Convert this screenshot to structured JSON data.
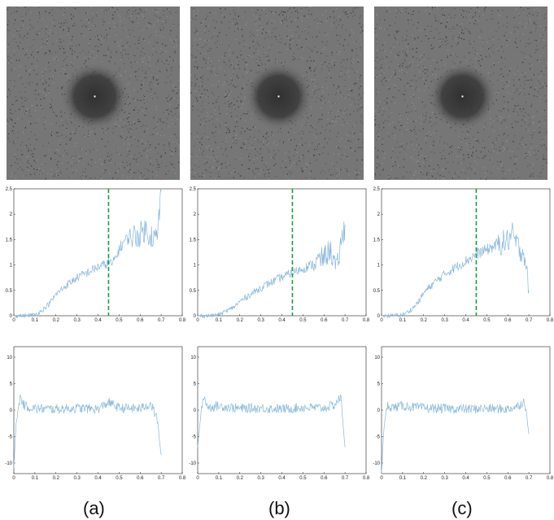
{
  "captions": [
    "(a)",
    "(b)",
    "(c)"
  ],
  "colors": {
    "signal": "#8ab8db",
    "cutoff": "#1a9e3a",
    "axis": "#222222"
  },
  "chart_data": [
    {
      "panel": "a",
      "type": "image",
      "content": "fourier-power-spectrum",
      "colormap": "gray"
    },
    {
      "panel": "b",
      "type": "image",
      "content": "fourier-power-spectrum",
      "colormap": "gray"
    },
    {
      "panel": "c",
      "type": "image",
      "content": "fourier-power-spectrum",
      "colormap": "gray"
    },
    {
      "panel": "a",
      "type": "line",
      "xlim": [
        0,
        0.8
      ],
      "ylim": [
        0,
        2.5
      ],
      "xticks": [
        "0",
        "0.1",
        "0.2",
        "0.3",
        "0.4",
        "0.5",
        "0.6",
        "0.7",
        "0.8"
      ],
      "yticks": [
        "0",
        "0.5",
        "1",
        "1.5",
        "2",
        "2.5"
      ],
      "grid": false,
      "cutoff_x": 0.45,
      "x": [
        0,
        0.05,
        0.1,
        0.12,
        0.15,
        0.18,
        0.2,
        0.25,
        0.3,
        0.35,
        0.4,
        0.43,
        0.45,
        0.47,
        0.5,
        0.52,
        0.55,
        0.6,
        0.62,
        0.65,
        0.68,
        0.7
      ],
      "y": [
        0,
        0,
        0.02,
        0.06,
        0.16,
        0.3,
        0.42,
        0.6,
        0.75,
        0.85,
        0.96,
        1.0,
        1.05,
        1.02,
        1.3,
        1.45,
        1.55,
        1.6,
        1.7,
        1.6,
        1.5,
        2.45
      ],
      "series": [
        {
          "values": "y"
        }
      ]
    },
    {
      "panel": "b",
      "type": "line",
      "xlim": [
        0,
        0.8
      ],
      "ylim": [
        0,
        2.5
      ],
      "xticks": [
        "0",
        "0.1",
        "0.2",
        "0.3",
        "0.4",
        "0.5",
        "0.6",
        "0.7",
        "0.8"
      ],
      "yticks": [
        "0",
        "0.5",
        "1",
        "1.5",
        "2",
        "2.5"
      ],
      "grid": false,
      "cutoff_x": 0.45,
      "x": [
        0,
        0.05,
        0.1,
        0.12,
        0.15,
        0.18,
        0.2,
        0.25,
        0.3,
        0.35,
        0.4,
        0.45,
        0.5,
        0.55,
        0.6,
        0.63,
        0.66,
        0.68,
        0.7
      ],
      "y": [
        0,
        0,
        0.02,
        0.06,
        0.12,
        0.2,
        0.28,
        0.42,
        0.55,
        0.66,
        0.76,
        0.85,
        0.93,
        1.02,
        1.15,
        1.3,
        0.9,
        1.4,
        1.8
      ],
      "series": [
        {
          "values": "y"
        }
      ]
    },
    {
      "panel": "c",
      "type": "line",
      "xlim": [
        0,
        0.8
      ],
      "ylim": [
        0,
        2.5
      ],
      "xticks": [
        "0",
        "0.1",
        "0.2",
        "0.3",
        "0.4",
        "0.5",
        "0.6",
        "0.7",
        "0.8"
      ],
      "yticks": [
        "0",
        "0.5",
        "1",
        "1.5",
        "2",
        "2.5"
      ],
      "grid": false,
      "cutoff_x": 0.45,
      "x": [
        0,
        0.05,
        0.1,
        0.12,
        0.15,
        0.18,
        0.2,
        0.25,
        0.3,
        0.35,
        0.4,
        0.43,
        0.45,
        0.5,
        0.55,
        0.6,
        0.62,
        0.65,
        0.68,
        0.7
      ],
      "y": [
        0,
        0,
        0.02,
        0.06,
        0.15,
        0.3,
        0.45,
        0.65,
        0.82,
        0.95,
        1.08,
        1.15,
        1.22,
        1.3,
        1.4,
        1.48,
        1.6,
        1.35,
        1.2,
        0.5
      ],
      "series": [
        {
          "values": "y"
        }
      ]
    },
    {
      "panel": "a",
      "type": "line",
      "xlim": [
        0,
        0.8
      ],
      "ylim": [
        -12,
        12
      ],
      "xticks": [
        "0",
        "0.1",
        "0.2",
        "0.3",
        "0.4",
        "0.5",
        "0.6",
        "0.7",
        "0.8"
      ],
      "yticks": [
        "-10",
        "-5",
        "0",
        "5",
        "10"
      ],
      "grid": false,
      "x": [
        0,
        0.01,
        0.02,
        0.03,
        0.05,
        0.1,
        0.2,
        0.3,
        0.4,
        0.45,
        0.5,
        0.6,
        0.65,
        0.68,
        0.7
      ],
      "y": [
        -11,
        -3,
        0,
        2.5,
        0.8,
        0.3,
        0.2,
        0.4,
        0.2,
        1.5,
        0.4,
        0.3,
        1.2,
        -1.5,
        -8.5
      ],
      "series": [
        {
          "values": "y"
        }
      ]
    },
    {
      "panel": "b",
      "type": "line",
      "xlim": [
        0,
        0.8
      ],
      "ylim": [
        -12,
        12
      ],
      "xticks": [
        "0",
        "0.1",
        "0.2",
        "0.3",
        "0.4",
        "0.5",
        "0.6",
        "0.7",
        "0.8"
      ],
      "yticks": [
        "-10",
        "-5",
        "0",
        "5",
        "10"
      ],
      "grid": false,
      "x": [
        0,
        0.01,
        0.02,
        0.03,
        0.05,
        0.1,
        0.2,
        0.3,
        0.4,
        0.5,
        0.6,
        0.65,
        0.68,
        0.7
      ],
      "y": [
        -7,
        -3,
        1,
        2.5,
        0.5,
        0.8,
        0.3,
        0.4,
        0.2,
        0.5,
        0.4,
        1.0,
        2.5,
        -7
      ],
      "series": [
        {
          "values": "y"
        }
      ]
    },
    {
      "panel": "c",
      "type": "line",
      "xlim": [
        0,
        0.8
      ],
      "ylim": [
        -12,
        12
      ],
      "xticks": [
        "0",
        "0.1",
        "0.2",
        "0.3",
        "0.4",
        "0.5",
        "0.6",
        "0.7",
        "0.8"
      ],
      "yticks": [
        "-10",
        "-5",
        "0",
        "5",
        "10"
      ],
      "grid": false,
      "x": [
        0,
        0.01,
        0.02,
        0.03,
        0.05,
        0.1,
        0.2,
        0.3,
        0.4,
        0.5,
        0.6,
        0.65,
        0.68,
        0.7
      ],
      "y": [
        -12,
        -4,
        -1,
        1,
        0.5,
        0.8,
        0.4,
        0.3,
        0.2,
        0.3,
        0.2,
        0.8,
        1.8,
        -4.5
      ],
      "series": [
        {
          "values": "y"
        }
      ]
    }
  ]
}
